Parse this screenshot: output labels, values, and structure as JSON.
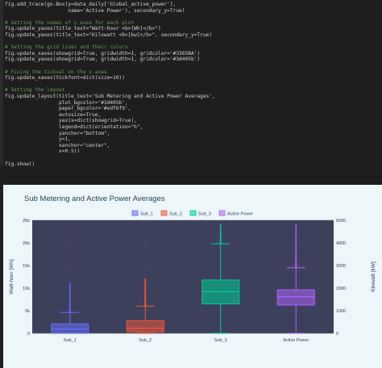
{
  "code": {
    "lines": [
      {
        "text": "fig.add_trace(go.Box(y=data_daily['Global_active_power'],",
        "kind": "plain"
      },
      {
        "text": "                     name='Active Power'), secondary_y=True)",
        "kind": "plain"
      },
      {
        "text": "",
        "kind": "plain"
      },
      {
        "text": "# Setting the names of y axes for each plot",
        "kind": "comment"
      },
      {
        "text": "fig.update_yaxes(title_text=\"Watt-hour <b>[Wh]</b>\")",
        "kind": "plain"
      },
      {
        "text": "fig.update_yaxes(title_text=\"Kilowatt <b>[kw]</b>\", secondary_y=True)",
        "kind": "plain"
      },
      {
        "text": "",
        "kind": "plain"
      },
      {
        "text": "# Setting the grid lines and their colors",
        "kind": "comment"
      },
      {
        "text": "fig.update_xaxes(showgrid=True, gridwidth=1, gridcolor='#3365BA')",
        "kind": "plain"
      },
      {
        "text": "fig.update_yaxes(showgrid=True, gridwidth=1, gridcolor='#3d405b')",
        "kind": "plain"
      },
      {
        "text": "",
        "kind": "plain"
      },
      {
        "text": "# Fixing the tickval on the x axes",
        "kind": "comment"
      },
      {
        "text": "fig.update_xaxes(tickfont=dict(size=10))",
        "kind": "plain"
      },
      {
        "text": "",
        "kind": "plain"
      },
      {
        "text": "# Setting the layout",
        "kind": "comment"
      },
      {
        "text": "fig.update_layout(title_text='Sub Metering and Active Power Averages',",
        "kind": "plain"
      },
      {
        "text": "                  plot_bgcolor='#3d405b',",
        "kind": "plain"
      },
      {
        "text": "                  paper_bgcolor='#edf6f9',",
        "kind": "plain"
      },
      {
        "text": "                  autosize=True,",
        "kind": "plain"
      },
      {
        "text": "                  yaxis=dict(showgrid=True),",
        "kind": "plain"
      },
      {
        "text": "                  legend=dict(orientation=\"h\",",
        "kind": "plain"
      },
      {
        "text": "                  yanchor=\"bottom\",",
        "kind": "plain"
      },
      {
        "text": "                  y=1,",
        "kind": "plain"
      },
      {
        "text": "                  xanchor=\"center\",",
        "kind": "plain"
      },
      {
        "text": "                  x=0.5))",
        "kind": "plain"
      },
      {
        "text": "",
        "kind": "plain"
      },
      {
        "text": "fig.show()",
        "kind": "plain"
      }
    ]
  },
  "colors": {
    "plot_bg": "#3d405b",
    "paper_bg": "#edf6f9",
    "grid": "#4a4d6a",
    "sub1": "#636efa",
    "sub2": "#ef553b",
    "sub3": "#00cc96",
    "active": "#ab63fa"
  },
  "chart_data": {
    "type": "box",
    "title": "Sub Metering and Active Power Averages",
    "ylabel_left": "Watt-hour [Wh]",
    "ylabel_right": "Kilowatt [kW]",
    "categories": [
      "Sub_1",
      "Sub_2",
      "Sub_3",
      "Active Power"
    ],
    "legend": [
      "Sub_1",
      "Sub_2",
      "Sub_3",
      "Active Power"
    ],
    "legend_placement": "top-center",
    "y_left": {
      "range": [
        0,
        25000
      ],
      "ticks": [
        0,
        5000,
        10000,
        15000,
        20000,
        25000
      ],
      "tick_labels": [
        "0",
        "5k",
        "10k",
        "15k",
        "20k",
        "25k"
      ]
    },
    "y_right": {
      "range": [
        0,
        5000
      ],
      "ticks": [
        0,
        1000,
        2000,
        3000,
        4000,
        5000
      ],
      "tick_labels": [
        "0",
        "1000",
        "2000",
        "3000",
        "4000",
        "5000"
      ]
    },
    "series": [
      {
        "name": "Sub_1",
        "axis": "left",
        "min": 0,
        "q1": 0,
        "median": 900,
        "q3": 2100,
        "upper_fence": 4600,
        "max": 11000,
        "outlier_density": 30
      },
      {
        "name": "Sub_2",
        "axis": "left",
        "min": 0,
        "q1": 300,
        "median": 1100,
        "q3": 2800,
        "upper_fence": 6000,
        "max": 12000,
        "outlier_density": 45
      },
      {
        "name": "Sub_3",
        "axis": "left",
        "min": 0,
        "q1": 6500,
        "median": 9200,
        "q3": 11800,
        "upper_fence": 19800,
        "max": 24000,
        "outlier_density": 20
      },
      {
        "name": "Active Power",
        "axis": "right",
        "min": 0,
        "q1": 1250,
        "median": 1620,
        "q3": 1920,
        "upper_fence": 2900,
        "max": 4800,
        "outlier_density": 40
      }
    ]
  }
}
